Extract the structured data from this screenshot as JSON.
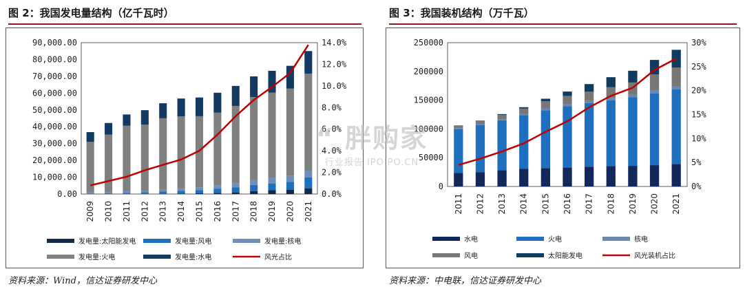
{
  "left": {
    "title": "图 2：我国发电量结构（亿千瓦时）",
    "source": "资料来源：Wind，信达证券研发中心"
  },
  "right": {
    "title": "图 3：我国装机结构（万千瓦）",
    "source": "资料来源：中电联，信达证券研发中心"
  },
  "watermark": {
    "main": "“ 胖购家",
    "sub": "行业报告 IPOIPO.CN"
  },
  "colors": {
    "solar": "#14284b",
    "wind": "#1f6fbf",
    "nuclear": "#6f8fb8",
    "thermal": "#808080",
    "hydro_left": "#123a62",
    "hydro_right": "#12285a",
    "thermal_right": "#1f6fbf",
    "nuclear_right": "#6b86b3",
    "wind_right": "#777777",
    "solar_right": "#0f3b5f",
    "ratio": "#c00000"
  },
  "chart_data": [
    {
      "type": "bar",
      "stacked": true,
      "categories": [
        "2009",
        "2010",
        "2011",
        "2012",
        "2013",
        "2014",
        "2015",
        "2016",
        "2017",
        "2018",
        "2019",
        "2020",
        "2021"
      ],
      "series": [
        {
          "name": "发电量:太阳能发电",
          "values": [
            0,
            0,
            10,
            40,
            90,
            230,
            400,
            660,
            970,
            1770,
            2240,
            2610,
            3270
          ]
        },
        {
          "name": "发电量:风电",
          "values": [
            276,
            494,
            741,
            1030,
            1383,
            1598,
            1856,
            2410,
            3057,
            3660,
            4057,
            4665,
            6556
          ]
        },
        {
          "name": "发电量:核电",
          "values": [
            701,
            747,
            872,
            983,
            1115,
            1332,
            1714,
            2133,
            2481,
            2944,
            3487,
            3662,
            4075
          ]
        },
        {
          "name": "发电量:火电",
          "values": [
            30117,
            34145,
            39003,
            39255,
            42470,
            43031,
            42307,
            43273,
            45877,
            49249,
            50465,
            51743,
            57703
          ]
        },
        {
          "name": "发电量:水电",
          "values": [
            5717,
            6867,
            6681,
            8556,
            8921,
            10601,
            11127,
            11748,
            11898,
            12321,
            13021,
            13552,
            13401
          ]
        }
      ],
      "line": {
        "name": "风光占比",
        "values": [
          0.8,
          1.2,
          1.6,
          2.2,
          2.7,
          3.2,
          4.0,
          5.5,
          7.2,
          8.7,
          9.9,
          11.2,
          13.8
        ]
      },
      "ylim": [
        0,
        90000
      ],
      "y_ticks": [
        "0.00",
        "10,000.00",
        "20,000.00",
        "30,000.00",
        "40,000.00",
        "50,000.00",
        "60,000.00",
        "70,000.00",
        "80,000.00",
        "90,000.00"
      ],
      "y2lim": [
        0,
        14
      ],
      "y2_ticks": [
        "0.0%",
        "2.0%",
        "4.0%",
        "6.0%",
        "8.0%",
        "10.0%",
        "12.0%",
        "14.0%"
      ],
      "legend": [
        "发电量:太阳能发电",
        "发电量:风电",
        "发电量:核电",
        "发电量:火电",
        "发电量:水电",
        "风光占比"
      ]
    },
    {
      "type": "bar",
      "stacked": true,
      "categories": [
        "2011",
        "2012",
        "2013",
        "2014",
        "2015",
        "2016",
        "2017",
        "2018",
        "2019",
        "2020",
        "2021"
      ],
      "series": [
        {
          "name": "水电",
          "values": [
            23298,
            24947,
            28044,
            30486,
            31954,
            33207,
            34359,
            35226,
            35804,
            37016,
            39092
          ]
        },
        {
          "name": "火电",
          "values": [
            76834,
            81968,
            87009,
            93232,
            100554,
            106094,
            110604,
            114408,
            119055,
            124517,
            129678
          ]
        },
        {
          "name": "核电",
          "values": [
            1257,
            1257,
            1466,
            2008,
            2717,
            3364,
            3582,
            4466,
            4874,
            4989,
            5326
          ]
        },
        {
          "name": "风电",
          "values": [
            4623,
            6142,
            7652,
            9657,
            13075,
            14747,
            16400,
            18427,
            21005,
            28153,
            32848
          ]
        },
        {
          "name": "太阳能发电",
          "values": [
            212,
            341,
            1589,
            2486,
            4218,
            7631,
            13042,
            17433,
            20418,
            25343,
            30656
          ]
        }
      ],
      "line": {
        "name": "风光装机占比",
        "values": [
          4.5,
          5.8,
          7.3,
          9.0,
          11.4,
          13.6,
          16.5,
          18.9,
          20.6,
          24.3,
          26.7
        ]
      },
      "ylim": [
        0,
        250000
      ],
      "y_ticks": [
        "0",
        "50000",
        "100000",
        "150000",
        "200000",
        "250000"
      ],
      "y2lim": [
        0,
        30
      ],
      "y2_ticks": [
        "0%",
        "5%",
        "10%",
        "15%",
        "20%",
        "25%",
        "30%"
      ],
      "legend": [
        "水电",
        "火电",
        "核电",
        "风电",
        "太阳能发电",
        "风光装机占比"
      ]
    }
  ]
}
